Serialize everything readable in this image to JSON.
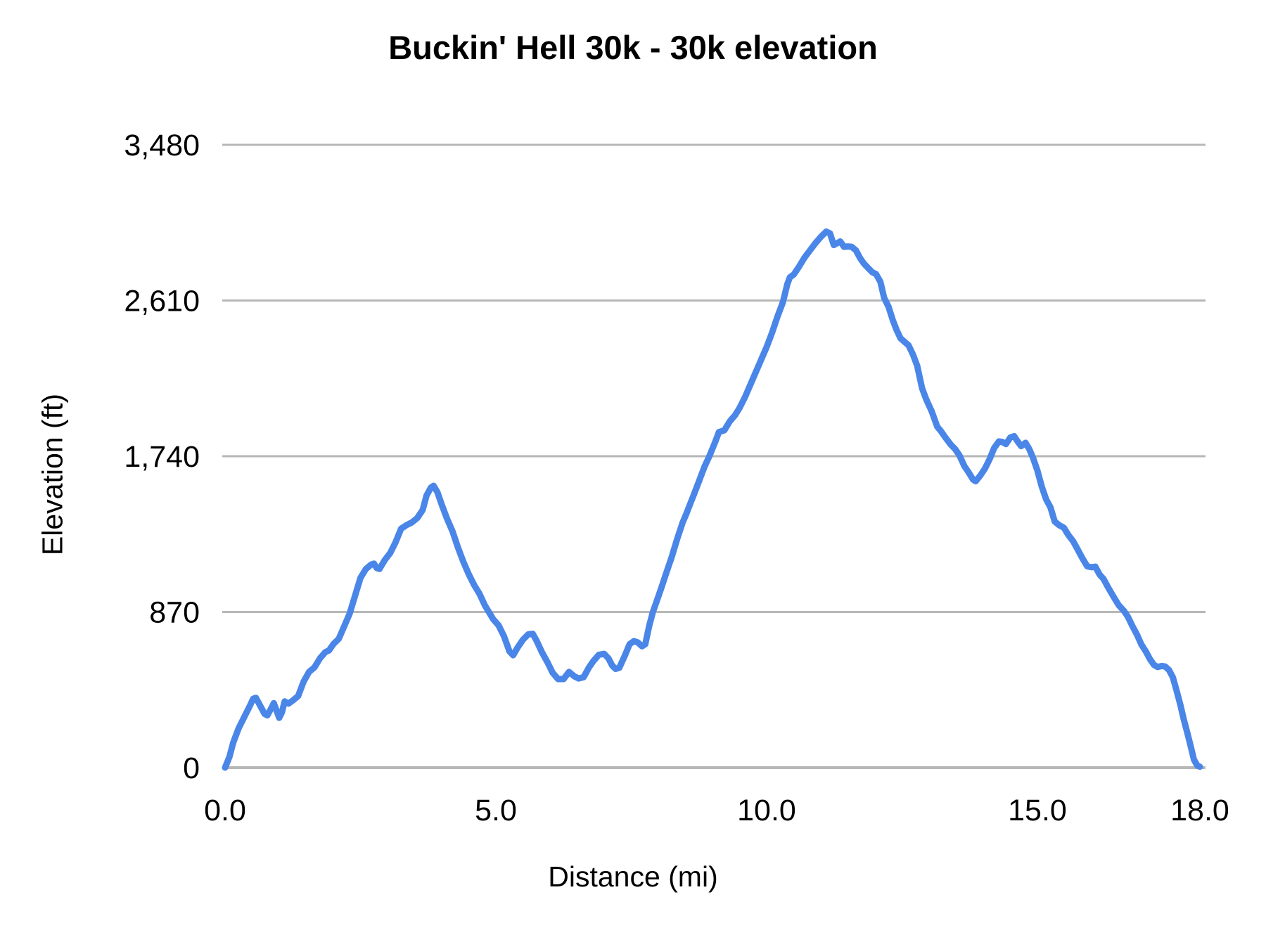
{
  "title": "Buckin' Hell 30k - 30k elevation",
  "chart_data": {
    "type": "line",
    "title": "Buckin' Hell 30k - 30k elevation",
    "xlabel": "Distance (mi)",
    "ylabel": "Elevation (ft)",
    "xlim": [
      0,
      18
    ],
    "ylim": [
      0,
      3480
    ],
    "grid": true,
    "legend_position": "none",
    "line_color": "#4a86e8",
    "grid_color": "#b7b7b7",
    "text_color": "#000000",
    "x_ticks": [
      {
        "value": 0,
        "label": "0.0"
      },
      {
        "value": 5,
        "label": "5.0"
      },
      {
        "value": 10,
        "label": "10.0"
      },
      {
        "value": 15,
        "label": "15.0"
      },
      {
        "value": 18,
        "label": "18.0"
      }
    ],
    "y_ticks": [
      {
        "value": 0,
        "label": "0"
      },
      {
        "value": 870,
        "label": "870"
      },
      {
        "value": 1740,
        "label": "1,740"
      },
      {
        "value": 2610,
        "label": "2,610"
      },
      {
        "value": 3480,
        "label": "3,480"
      }
    ],
    "points": [
      [
        0,
        0
      ],
      [
        0.08,
        60
      ],
      [
        0.15,
        140
      ],
      [
        0.25,
        220
      ],
      [
        0.35,
        280
      ],
      [
        0.45,
        340
      ],
      [
        0.52,
        385
      ],
      [
        0.57,
        390
      ],
      [
        0.65,
        345
      ],
      [
        0.73,
        300
      ],
      [
        0.78,
        292
      ],
      [
        0.85,
        330
      ],
      [
        0.9,
        360
      ],
      [
        0.95,
        320
      ],
      [
        1.0,
        278
      ],
      [
        1.05,
        310
      ],
      [
        1.1,
        370
      ],
      [
        1.17,
        358
      ],
      [
        1.25,
        375
      ],
      [
        1.35,
        400
      ],
      [
        1.45,
        480
      ],
      [
        1.55,
        535
      ],
      [
        1.65,
        560
      ],
      [
        1.75,
        610
      ],
      [
        1.85,
        645
      ],
      [
        1.92,
        655
      ],
      [
        2.0,
        690
      ],
      [
        2.1,
        720
      ],
      [
        2.2,
        790
      ],
      [
        2.3,
        860
      ],
      [
        2.4,
        960
      ],
      [
        2.5,
        1060
      ],
      [
        2.6,
        1110
      ],
      [
        2.7,
        1135
      ],
      [
        2.75,
        1140
      ],
      [
        2.8,
        1115
      ],
      [
        2.85,
        1110
      ],
      [
        2.95,
        1160
      ],
      [
        3.05,
        1200
      ],
      [
        3.15,
        1260
      ],
      [
        3.25,
        1335
      ],
      [
        3.35,
        1355
      ],
      [
        3.45,
        1370
      ],
      [
        3.55,
        1395
      ],
      [
        3.65,
        1440
      ],
      [
        3.72,
        1520
      ],
      [
        3.8,
        1565
      ],
      [
        3.85,
        1575
      ],
      [
        3.92,
        1540
      ],
      [
        4.0,
        1470
      ],
      [
        4.1,
        1390
      ],
      [
        4.2,
        1320
      ],
      [
        4.3,
        1230
      ],
      [
        4.4,
        1150
      ],
      [
        4.5,
        1080
      ],
      [
        4.6,
        1020
      ],
      [
        4.7,
        970
      ],
      [
        4.8,
        905
      ],
      [
        4.88,
        865
      ],
      [
        4.95,
        830
      ],
      [
        5.05,
        795
      ],
      [
        5.15,
        735
      ],
      [
        5.25,
        650
      ],
      [
        5.32,
        628
      ],
      [
        5.4,
        670
      ],
      [
        5.5,
        715
      ],
      [
        5.6,
        745
      ],
      [
        5.68,
        748
      ],
      [
        5.75,
        710
      ],
      [
        5.85,
        645
      ],
      [
        5.95,
        590
      ],
      [
        6.05,
        530
      ],
      [
        6.15,
        495
      ],
      [
        6.25,
        495
      ],
      [
        6.35,
        535
      ],
      [
        6.45,
        510
      ],
      [
        6.53,
        498
      ],
      [
        6.62,
        505
      ],
      [
        6.72,
        560
      ],
      [
        6.8,
        595
      ],
      [
        6.9,
        630
      ],
      [
        7.0,
        636
      ],
      [
        7.08,
        610
      ],
      [
        7.15,
        570
      ],
      [
        7.21,
        552
      ],
      [
        7.28,
        558
      ],
      [
        7.38,
        625
      ],
      [
        7.47,
        690
      ],
      [
        7.55,
        707
      ],
      [
        7.62,
        700
      ],
      [
        7.7,
        678
      ],
      [
        7.76,
        690
      ],
      [
        7.83,
        790
      ],
      [
        7.9,
        870
      ],
      [
        7.97,
        930
      ],
      [
        8.05,
        1000
      ],
      [
        8.15,
        1090
      ],
      [
        8.25,
        1180
      ],
      [
        8.35,
        1280
      ],
      [
        8.45,
        1370
      ],
      [
        8.52,
        1420
      ],
      [
        8.57,
        1460
      ],
      [
        8.65,
        1520
      ],
      [
        8.75,
        1600
      ],
      [
        8.85,
        1680
      ],
      [
        8.95,
        1745
      ],
      [
        9.05,
        1820
      ],
      [
        9.12,
        1875
      ],
      [
        9.22,
        1885
      ],
      [
        9.32,
        1935
      ],
      [
        9.42,
        1970
      ],
      [
        9.5,
        2010
      ],
      [
        9.6,
        2070
      ],
      [
        9.7,
        2140
      ],
      [
        9.8,
        2210
      ],
      [
        9.9,
        2280
      ],
      [
        10.0,
        2350
      ],
      [
        10.1,
        2430
      ],
      [
        10.2,
        2520
      ],
      [
        10.3,
        2600
      ],
      [
        10.38,
        2700
      ],
      [
        10.43,
        2740
      ],
      [
        10.5,
        2755
      ],
      [
        10.6,
        2800
      ],
      [
        10.7,
        2850
      ],
      [
        10.8,
        2890
      ],
      [
        10.9,
        2930
      ],
      [
        11.0,
        2965
      ],
      [
        11.1,
        2995
      ],
      [
        11.17,
        2985
      ],
      [
        11.24,
        2920
      ],
      [
        11.3,
        2930
      ],
      [
        11.36,
        2940
      ],
      [
        11.43,
        2910
      ],
      [
        11.5,
        2912
      ],
      [
        11.57,
        2910
      ],
      [
        11.65,
        2890
      ],
      [
        11.73,
        2845
      ],
      [
        11.8,
        2815
      ],
      [
        11.88,
        2790
      ],
      [
        11.95,
        2768
      ],
      [
        12.02,
        2758
      ],
      [
        12.1,
        2715
      ],
      [
        12.17,
        2625
      ],
      [
        12.25,
        2575
      ],
      [
        12.33,
        2500
      ],
      [
        12.4,
        2445
      ],
      [
        12.47,
        2400
      ],
      [
        12.55,
        2378
      ],
      [
        12.62,
        2360
      ],
      [
        12.7,
        2310
      ],
      [
        12.78,
        2245
      ],
      [
        12.87,
        2120
      ],
      [
        12.95,
        2055
      ],
      [
        13.05,
        1990
      ],
      [
        13.15,
        1905
      ],
      [
        13.22,
        1880
      ],
      [
        13.3,
        1845
      ],
      [
        13.4,
        1805
      ],
      [
        13.48,
        1780
      ],
      [
        13.56,
        1745
      ],
      [
        13.65,
        1685
      ],
      [
        13.73,
        1650
      ],
      [
        13.81,
        1610
      ],
      [
        13.86,
        1600
      ],
      [
        13.94,
        1630
      ],
      [
        14.03,
        1670
      ],
      [
        14.12,
        1725
      ],
      [
        14.2,
        1785
      ],
      [
        14.29,
        1823
      ],
      [
        14.35,
        1820
      ],
      [
        14.42,
        1808
      ],
      [
        14.5,
        1845
      ],
      [
        14.57,
        1852
      ],
      [
        14.64,
        1820
      ],
      [
        14.7,
        1796
      ],
      [
        14.78,
        1815
      ],
      [
        14.85,
        1780
      ],
      [
        14.92,
        1730
      ],
      [
        15.0,
        1660
      ],
      [
        15.08,
        1570
      ],
      [
        15.16,
        1500
      ],
      [
        15.24,
        1455
      ],
      [
        15.32,
        1375
      ],
      [
        15.4,
        1355
      ],
      [
        15.49,
        1340
      ],
      [
        15.57,
        1300
      ],
      [
        15.66,
        1265
      ],
      [
        15.75,
        1215
      ],
      [
        15.83,
        1170
      ],
      [
        15.92,
        1125
      ],
      [
        16.0,
        1120
      ],
      [
        16.07,
        1123
      ],
      [
        16.15,
        1078
      ],
      [
        16.22,
        1055
      ],
      [
        16.3,
        1010
      ],
      [
        16.4,
        958
      ],
      [
        16.5,
        908
      ],
      [
        16.6,
        875
      ],
      [
        16.67,
        843
      ],
      [
        16.75,
        793
      ],
      [
        16.84,
        742
      ],
      [
        16.92,
        688
      ],
      [
        17.0,
        650
      ],
      [
        17.08,
        605
      ],
      [
        17.15,
        575
      ],
      [
        17.22,
        562
      ],
      [
        17.3,
        568
      ],
      [
        17.36,
        565
      ],
      [
        17.43,
        545
      ],
      [
        17.5,
        505
      ],
      [
        17.57,
        430
      ],
      [
        17.64,
        350
      ],
      [
        17.7,
        272
      ],
      [
        17.77,
        192
      ],
      [
        17.83,
        120
      ],
      [
        17.89,
        45
      ],
      [
        17.95,
        12
      ],
      [
        18.0,
        5
      ]
    ]
  }
}
